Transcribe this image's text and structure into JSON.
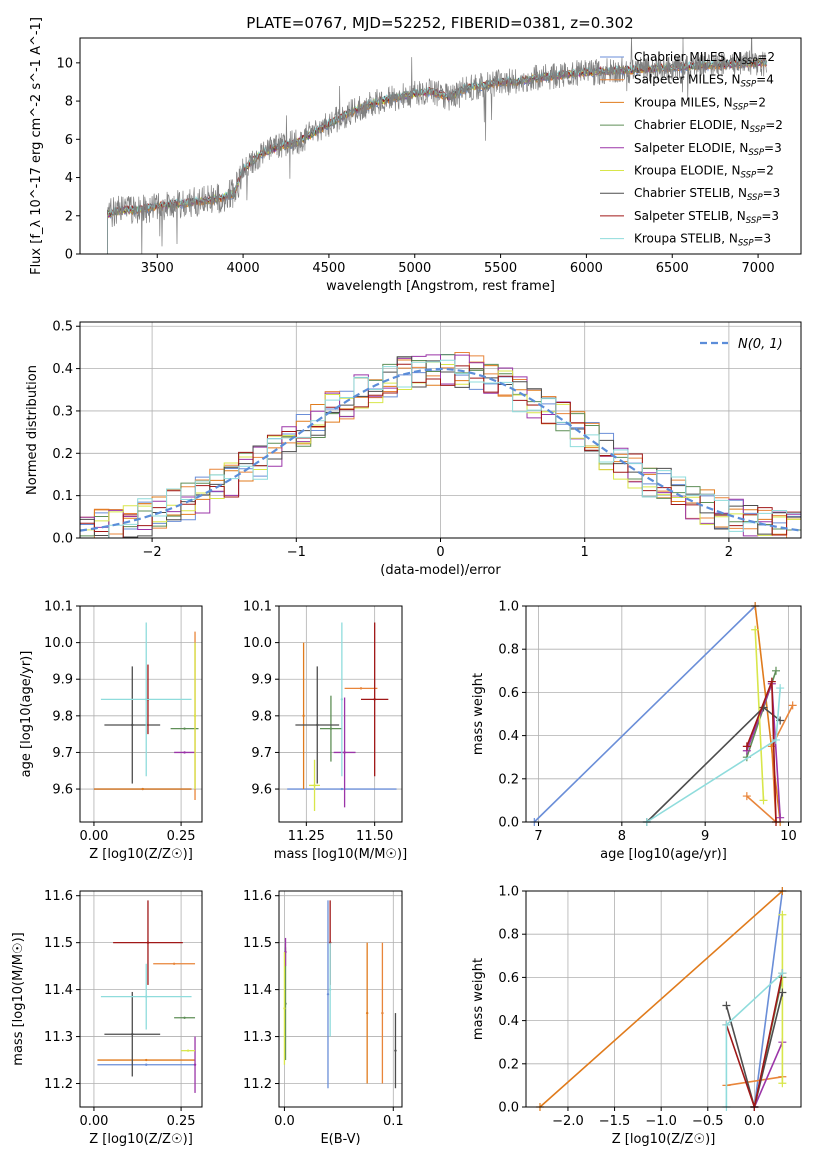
{
  "figure_title": "PLATE=0767, MJD=52252, FIBERID=0381, z=0.302",
  "models": [
    {
      "name": "Chabrier MILES",
      "nssp": "2",
      "color": "#6a8ed8"
    },
    {
      "name": "Salpeter MILES",
      "nssp": "4",
      "color": "#e8853a"
    },
    {
      "name": "Kroupa MILES",
      "nssp": "2",
      "color": "#e07b1c"
    },
    {
      "name": "Chabrier ELODIE",
      "nssp": "2",
      "color": "#5f8f57"
    },
    {
      "name": "Salpeter ELODIE",
      "nssp": "3",
      "color": "#9b35a8"
    },
    {
      "name": "Kroupa ELODIE",
      "nssp": "2",
      "color": "#d8e64a"
    },
    {
      "name": "Chabrier STELIB",
      "nssp": "3",
      "color": "#4d4d4d"
    },
    {
      "name": "Salpeter STELIB",
      "nssp": "3",
      "color": "#a01818"
    },
    {
      "name": "Kroupa STELIB",
      "nssp": "3",
      "color": "#8fdcdc"
    }
  ],
  "chart_data": [
    {
      "id": "spectrum",
      "type": "line",
      "title": "PLATE=0767, MJD=52252, FIBERID=0381, z=0.302",
      "xlabel": "wavelength [Angstrom, rest frame]",
      "ylabel": "Flux [f_λ 10^-17 erg cm^-2 s^-1 A^-1]",
      "xlim": [
        3050,
        7250
      ],
      "ylim": [
        0,
        11.3
      ],
      "xticks": [
        3500,
        4000,
        4500,
        5000,
        5500,
        6000,
        6500,
        7000
      ],
      "yticks": [
        0,
        2,
        4,
        6,
        8,
        10
      ],
      "data_color": "#808080",
      "data_continuum": [
        [
          3210,
          2.1
        ],
        [
          3300,
          2.3
        ],
        [
          3400,
          2.3
        ],
        [
          3500,
          2.5
        ],
        [
          3600,
          2.6
        ],
        [
          3700,
          2.7
        ],
        [
          3800,
          2.8
        ],
        [
          3900,
          3.0
        ],
        [
          3950,
          3.2
        ],
        [
          4000,
          4.4
        ],
        [
          4100,
          5.2
        ],
        [
          4200,
          5.6
        ],
        [
          4300,
          5.8
        ],
        [
          4400,
          6.3
        ],
        [
          4500,
          6.8
        ],
        [
          4600,
          7.3
        ],
        [
          4700,
          7.7
        ],
        [
          4800,
          8.0
        ],
        [
          4900,
          8.2
        ],
        [
          5000,
          8.4
        ],
        [
          5100,
          8.5
        ],
        [
          5200,
          8.2
        ],
        [
          5300,
          8.7
        ],
        [
          5400,
          8.8
        ],
        [
          5500,
          9.0
        ],
        [
          5600,
          9.0
        ],
        [
          5700,
          9.2
        ],
        [
          5800,
          9.3
        ],
        [
          5900,
          9.4
        ],
        [
          6000,
          9.5
        ],
        [
          6200,
          9.6
        ],
        [
          6400,
          9.7
        ],
        [
          6600,
          9.8
        ],
        [
          6800,
          9.9
        ],
        [
          7000,
          10.0
        ],
        [
          7050,
          10.0
        ]
      ]
    },
    {
      "id": "residuals",
      "type": "line",
      "xlabel": "(data-model)/error",
      "ylabel": "Normed distribution",
      "xlim": [
        -2.5,
        2.5
      ],
      "ylim": [
        0,
        0.51
      ],
      "xticks": [
        -2,
        -1,
        0,
        1,
        2
      ],
      "yticks": [
        0.0,
        0.1,
        0.2,
        0.3,
        0.4,
        0.5
      ],
      "reference_label": "N(0, 1)",
      "reference_color": "#5b8dd9",
      "bin_width": 0.1
    },
    {
      "id": "z_age",
      "type": "scatter",
      "xlabel": "Z [log10(Z/Z☉)]",
      "ylabel": "age  [log10(age/yr)]",
      "xlim": [
        -0.04,
        0.31
      ],
      "ylim": [
        9.51,
        10.1
      ],
      "xticks": [
        0.0,
        0.25
      ],
      "yticks": [
        9.6,
        9.7,
        9.8,
        9.9,
        10.0,
        10.1
      ],
      "points": [
        {
          "model": 0,
          "x": 0.14,
          "y": 9.6,
          "xerr": 0.14,
          "yerr": 0.0
        },
        {
          "model": 1,
          "x": 0.29,
          "y": 9.8,
          "xerr": 0.0,
          "yerr": 0.23
        },
        {
          "model": 2,
          "x": 0.14,
          "y": 9.6,
          "xerr": 0.14,
          "yerr": 0.0
        },
        {
          "model": 3,
          "x": 0.26,
          "y": 9.765,
          "xerr": 0.04,
          "yerr": 0.0
        },
        {
          "model": 4,
          "x": 0.26,
          "y": 9.7,
          "xerr": 0.03,
          "yerr": 0.0
        },
        {
          "model": 5,
          "x": 0.29,
          "y": 9.8,
          "xerr": 0.0,
          "yerr": 0.2
        },
        {
          "model": 6,
          "x": 0.11,
          "y": 9.775,
          "xerr": 0.08,
          "yerr": 0.16
        },
        {
          "model": 7,
          "x": 0.155,
          "y": 9.845,
          "xerr": 0.0,
          "yerr": 0.095
        },
        {
          "model": 8,
          "x": 0.15,
          "y": 9.845,
          "xerr": 0.13,
          "yerr": 0.21
        }
      ]
    },
    {
      "id": "mass_age",
      "type": "scatter",
      "xlabel": "mass [log10(M/M☉)]",
      "ylabel": "",
      "xlim": [
        11.15,
        11.6
      ],
      "ylim": [
        9.51,
        10.1
      ],
      "xticks": [
        11.25,
        11.5
      ],
      "yticks": [
        9.6,
        9.7,
        9.8,
        9.9,
        10.0,
        10.1
      ],
      "points": [
        {
          "model": 0,
          "x": 11.38,
          "y": 9.6,
          "xerr": 0.2,
          "yerr": 0.0
        },
        {
          "model": 1,
          "x": 11.45,
          "y": 9.875,
          "xerr": 0.06,
          "yerr": 0.0
        },
        {
          "model": 2,
          "x": 11.24,
          "y": 9.8,
          "xerr": 0.0,
          "yerr": 0.2
        },
        {
          "model": 3,
          "x": 11.34,
          "y": 9.765,
          "xerr": 0.04,
          "yerr": 0.09
        },
        {
          "model": 4,
          "x": 11.39,
          "y": 9.7,
          "xerr": 0.04,
          "yerr": 0.15
        },
        {
          "model": 5,
          "x": 11.28,
          "y": 9.61,
          "xerr": 0.02,
          "yerr": 0.07
        },
        {
          "model": 6,
          "x": 11.29,
          "y": 9.775,
          "xerr": 0.08,
          "yerr": 0.16
        },
        {
          "model": 7,
          "x": 11.5,
          "y": 9.845,
          "xerr": 0.05,
          "yerr": 0.21
        },
        {
          "model": 8,
          "x": 11.38,
          "y": 9.845,
          "xerr": 0.0,
          "yerr": 0.21
        }
      ]
    },
    {
      "id": "age_weight",
      "type": "line",
      "xlabel": "age  [log10(age/yr)]",
      "ylabel": "mass weight",
      "xlim": [
        6.85,
        10.15
      ],
      "ylim": [
        0,
        1.0
      ],
      "xticks": [
        7,
        8,
        9,
        10
      ],
      "yticks": [
        0.0,
        0.2,
        0.4,
        0.6,
        0.8,
        1.0
      ],
      "series": [
        {
          "model": 0,
          "points": [
            [
              6.95,
              0.0
            ],
            [
              9.6,
              1.0
            ]
          ]
        },
        {
          "model": 1,
          "points": [
            [
              9.5,
              0.12
            ],
            [
              9.85,
              0.0
            ],
            [
              9.8,
              0.35
            ],
            [
              10.05,
              0.54
            ]
          ]
        },
        {
          "model": 2,
          "points": [
            [
              9.6,
              1.0
            ],
            [
              9.9,
              0.0
            ]
          ]
        },
        {
          "model": 3,
          "points": [
            [
              9.5,
              0.3
            ],
            [
              9.85,
              0.7
            ]
          ]
        },
        {
          "model": 4,
          "points": [
            [
              9.5,
              0.33
            ],
            [
              9.8,
              0.64
            ],
            [
              9.9,
              0.02
            ]
          ]
        },
        {
          "model": 5,
          "points": [
            [
              9.6,
              0.89
            ],
            [
              9.7,
              0.1
            ]
          ]
        },
        {
          "model": 6,
          "points": [
            [
              8.3,
              0.0
            ],
            [
              9.7,
              0.53
            ],
            [
              9.9,
              0.47
            ]
          ]
        },
        {
          "model": 7,
          "points": [
            [
              9.5,
              0.35
            ],
            [
              9.8,
              0.65
            ],
            [
              9.85,
              0.0
            ]
          ]
        },
        {
          "model": 8,
          "points": [
            [
              8.3,
              0.0
            ],
            [
              9.85,
              0.38
            ],
            [
              9.9,
              0.62
            ]
          ]
        }
      ]
    },
    {
      "id": "z_mass",
      "type": "scatter",
      "xlabel": "Z [log10(Z/Z☉)]",
      "ylabel": "mass [log10(M/M☉)]",
      "xlim": [
        -0.04,
        0.31
      ],
      "ylim": [
        11.15,
        11.61
      ],
      "xticks": [
        0.0,
        0.25
      ],
      "yticks": [
        11.2,
        11.3,
        11.4,
        11.5,
        11.6
      ],
      "points": [
        {
          "model": 0,
          "x": 0.15,
          "y": 11.24,
          "xerr": 0.14,
          "yerr": 0.0
        },
        {
          "model": 1,
          "x": 0.23,
          "y": 11.455,
          "xerr": 0.06,
          "yerr": 0.0
        },
        {
          "model": 2,
          "x": 0.15,
          "y": 11.25,
          "xerr": 0.14,
          "yerr": 0.0
        },
        {
          "model": 3,
          "x": 0.26,
          "y": 11.34,
          "xerr": 0.03,
          "yerr": 0.0
        },
        {
          "model": 4,
          "x": 0.29,
          "y": 11.24,
          "xerr": 0.0,
          "yerr": 0.06
        },
        {
          "model": 5,
          "x": 0.27,
          "y": 11.27,
          "xerr": 0.02,
          "yerr": 0.0
        },
        {
          "model": 6,
          "x": 0.11,
          "y": 11.305,
          "xerr": 0.08,
          "yerr": 0.09
        },
        {
          "model": 7,
          "x": 0.155,
          "y": 11.5,
          "xerr": 0.1,
          "yerr": 0.09
        },
        {
          "model": 8,
          "x": 0.15,
          "y": 11.385,
          "xerr": 0.13,
          "yerr": 0.07
        }
      ]
    },
    {
      "id": "ebv",
      "type": "scatter",
      "xlabel": "E(B-V)",
      "ylabel": "",
      "xlim": [
        -0.005,
        0.108
      ],
      "ylim": [
        11.15,
        11.61
      ],
      "xticks": [
        0.0,
        0.1
      ],
      "yticks": [
        11.2,
        11.3,
        11.4,
        11.5,
        11.6
      ],
      "points": [
        {
          "model": 0,
          "x": 0.04,
          "y": 11.39,
          "xerr": 0.0,
          "yerr": 0.2
        },
        {
          "model": 1,
          "x": 0.09,
          "y": 11.35,
          "xerr": 0.0,
          "yerr": 0.15
        },
        {
          "model": 2,
          "x": 0.076,
          "y": 11.35,
          "xerr": 0.0,
          "yerr": 0.15
        },
        {
          "model": 3,
          "x": 0.001,
          "y": 11.37,
          "xerr": 0.0,
          "yerr": 0.12
        },
        {
          "model": 4,
          "x": 0.001,
          "y": 11.48,
          "xerr": 0.0,
          "yerr": 0.03
        },
        {
          "model": 5,
          "x": 0.0,
          "y": 11.36,
          "xerr": 0.0,
          "yerr": 0.12
        },
        {
          "model": 6,
          "x": 0.102,
          "y": 11.27,
          "xerr": 0.0,
          "yerr": 0.08
        },
        {
          "model": 7,
          "x": 0.042,
          "y": 11.5,
          "xerr": 0.0,
          "yerr": 0.09
        },
        {
          "model": 8,
          "x": 0.042,
          "y": 11.4,
          "xerr": 0.0,
          "yerr": 0.1
        }
      ]
    },
    {
      "id": "z_weight",
      "type": "line",
      "xlabel": "Z [log10(Z/Z☉)]",
      "ylabel": "mass weight",
      "xlim": [
        -2.45,
        0.5
      ],
      "ylim": [
        0,
        1.0
      ],
      "xticks": [
        -2.0,
        -1.5,
        -1.0,
        -0.5,
        0.0
      ],
      "yticks": [
        0.0,
        0.2,
        0.4,
        0.6,
        0.8,
        1.0
      ],
      "series": [
        {
          "model": 0,
          "points": [
            [
              0.0,
              0.0
            ],
            [
              0.3,
              1.0
            ]
          ]
        },
        {
          "model": 1,
          "points": [
            [
              -0.3,
              0.1
            ],
            [
              0.3,
              0.14
            ]
          ]
        },
        {
          "model": 2,
          "points": [
            [
              -2.3,
              0.0
            ],
            [
              0.3,
              1.0
            ]
          ]
        },
        {
          "model": 3,
          "points": [
            [
              0.0,
              0.0
            ],
            [
              0.3,
              0.6
            ]
          ]
        },
        {
          "model": 4,
          "points": [
            [
              0.0,
              0.0
            ],
            [
              0.3,
              0.3
            ]
          ]
        },
        {
          "model": 5,
          "points": [
            [
              0.3,
              0.89
            ],
            [
              0.3,
              0.11
            ]
          ]
        },
        {
          "model": 6,
          "points": [
            [
              -0.3,
              0.47
            ],
            [
              0.0,
              0.0
            ],
            [
              0.3,
              0.53
            ]
          ]
        },
        {
          "model": 7,
          "points": [
            [
              -0.3,
              0.38
            ],
            [
              0.0,
              0.0
            ],
            [
              0.3,
              0.62
            ]
          ]
        },
        {
          "model": 8,
          "points": [
            [
              -0.3,
              0.0
            ],
            [
              -0.3,
              0.38
            ],
            [
              0.3,
              0.62
            ]
          ]
        }
      ]
    }
  ]
}
